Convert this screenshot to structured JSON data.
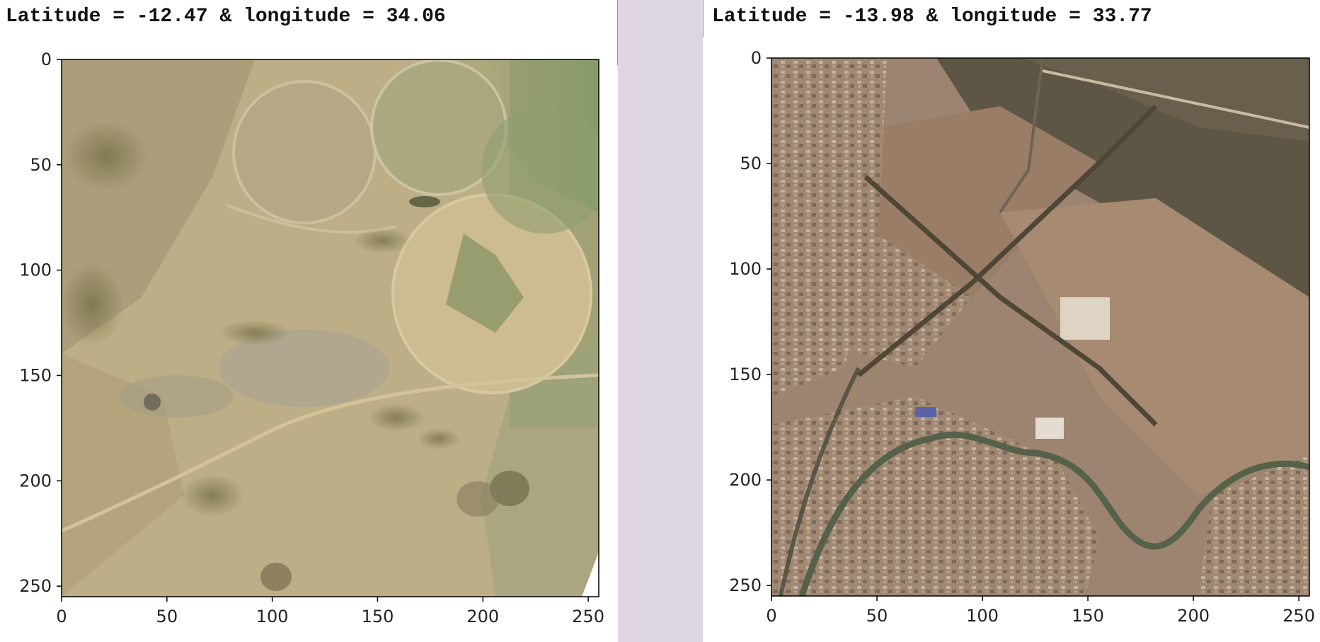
{
  "panels": [
    {
      "title": "Latitude = -12.47 & longitude = 34.06",
      "x_ticks": [
        "0",
        "50",
        "100",
        "150",
        "200",
        "250"
      ],
      "y_ticks": [
        "0",
        "50",
        "100",
        "150",
        "200",
        "250"
      ],
      "tick_values": [
        0,
        50,
        100,
        150,
        200,
        250
      ],
      "image_extent": [
        0,
        255
      ],
      "image_description": "Satellite imagery of arid tan terrain with centre-pivot irrigation circles, scattered dark vegetation and a faint road."
    },
    {
      "title": "Latitude = -13.98 & longitude = 33.77",
      "x_ticks": [
        "0",
        "50",
        "100",
        "150",
        "200",
        "250"
      ],
      "y_ticks": [
        "0",
        "50",
        "100",
        "150",
        "200",
        "250"
      ],
      "tick_values": [
        0,
        50,
        100,
        150,
        200,
        250
      ],
      "image_extent": [
        0,
        255
      ],
      "image_description": "Satellite imagery of an urban area with dense buildings, crossing roads, a winding river and brown open fields."
    }
  ],
  "colors": {
    "background": "#ffffff",
    "divider": "#ddd6e2",
    "green_line": "#8fae3a",
    "text": "#111111"
  }
}
